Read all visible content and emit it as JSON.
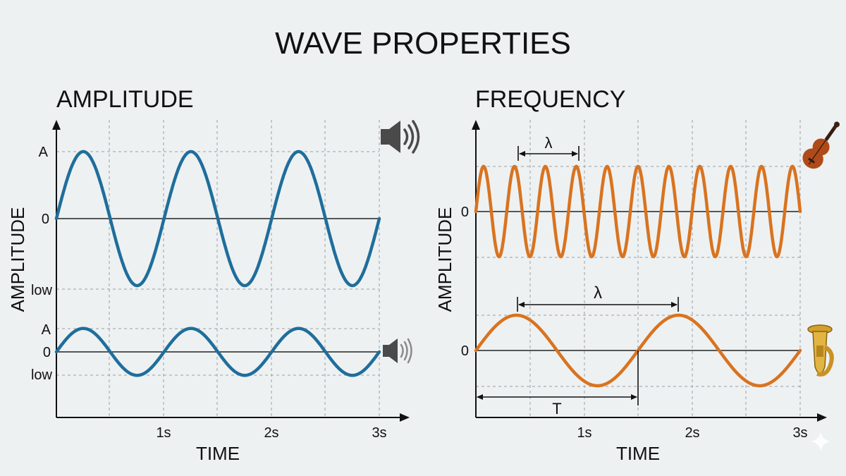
{
  "header": {
    "title": "WAVE PROPERTIES"
  },
  "colors": {
    "background": "#eef1f2",
    "amplitude_wave": "#1f6e9c",
    "frequency_wave": "#d9731f",
    "grid": "#9aa0a4"
  },
  "icons": {
    "left_top": "speaker-loud-icon",
    "left_bottom": "speaker-quiet-icon",
    "right_top": "violin-icon",
    "right_bottom": "tuba-icon",
    "corner": "sparkle-icon"
  },
  "amplitude_panel": {
    "heading": "AMPLITUDE",
    "ylabel": "AMPLITUDE",
    "xlabel": "TIME",
    "x_ticks": [
      "1s",
      "2s",
      "3s"
    ],
    "loud_labels": {
      "top": "A",
      "zero": "0",
      "bottom": "low"
    },
    "quiet_labels": {
      "top": "A",
      "zero": "0",
      "bottom": "low"
    }
  },
  "frequency_panel": {
    "heading": "FREQUENCY",
    "ylabel": "AMPLITUDE",
    "xlabel": "TIME",
    "x_ticks": [
      "1s",
      "2s",
      "3s"
    ],
    "high_zero": "0",
    "low_zero": "0",
    "wavelength_symbol": "λ",
    "period_symbol": "T"
  },
  "chart_data": [
    {
      "type": "line",
      "panel": "amplitude",
      "x_range": [
        0,
        3
      ],
      "series": [
        {
          "amplitude": 1.0,
          "frequency_hz": 1,
          "cycles": 3
        },
        {
          "amplitude": 0.35,
          "frequency_hz": 1,
          "cycles": 3
        }
      ]
    },
    {
      "type": "line",
      "panel": "frequency",
      "x_range": [
        0,
        3
      ],
      "series": [
        {
          "amplitude": 1.0,
          "frequency_hz": 3.5,
          "cycles": 10.5
        },
        {
          "amplitude": 1.0,
          "frequency_hz": 0.67,
          "cycles": 2
        }
      ]
    }
  ]
}
